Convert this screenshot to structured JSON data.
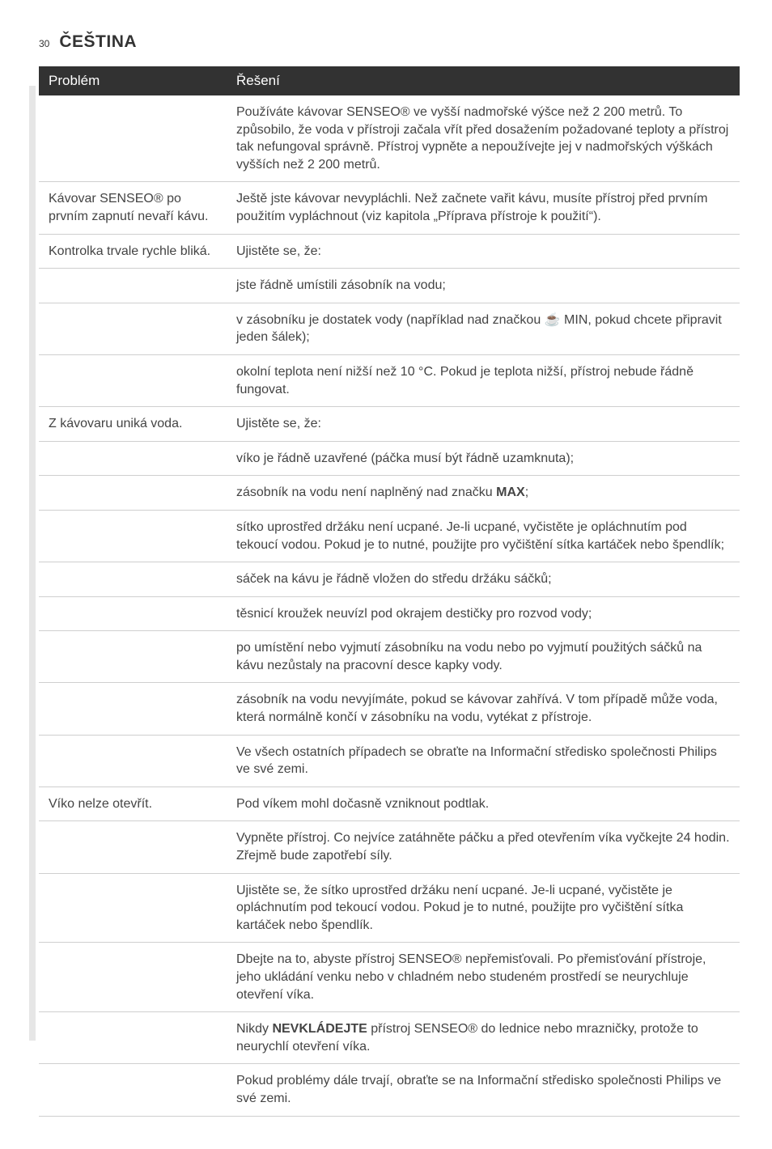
{
  "page_number": "30",
  "language_heading": "ČEŠTINA",
  "columns": {
    "problem": "Problém",
    "solution": "Řešení"
  },
  "rows": [
    {
      "problem": "",
      "solution": "Používáte kávovar SENSEO® ve vyšší nadmořské výšce než 2 200 metrů. To způsobilo, že voda v přístroji začala vřít před dosažením požadované teploty a přístroj tak nefungoval správně. Přístroj vypněte a nepoužívejte jej v nadmořských výškách vyšších než 2 200 metrů."
    },
    {
      "problem": "Kávovar SENSEO® po prvním zapnutí nevaří kávu.",
      "solution": "Ještě jste kávovar nevypláchli. Než začnete vařit kávu, musíte přístroj před prvním použitím vypláchnout (viz kapitola „Příprava přístroje k použití“)."
    },
    {
      "problem": "Kontrolka trvale rychle bliká.",
      "solution": "Ujistěte se, že:"
    },
    {
      "problem": "",
      "solution": "jste řádně umístili zásobník na vodu;"
    },
    {
      "problem": "",
      "solution": "v zásobníku je dostatek vody (například nad značkou ☕ MIN, pokud chcete připravit jeden šálek);"
    },
    {
      "problem": "",
      "solution": "okolní teplota není nižší než 10 °C. Pokud je teplota nižší, přístroj nebude řádně fungovat."
    },
    {
      "problem": "Z kávovaru uniká voda.",
      "solution": "Ujistěte se, že:"
    },
    {
      "problem": "",
      "solution": "víko je řádně uzavřené (páčka musí být řádně uzamknuta);"
    },
    {
      "problem": "",
      "solution_pre": "zásobník na vodu není naplněný nad značku ",
      "solution_bold": "MAX",
      "solution_post": ";"
    },
    {
      "problem": "",
      "solution": "sítko uprostřed držáku není ucpané. Je-li ucpané, vyčistěte je opláchnutím pod tekoucí vodou. Pokud je to nutné, použijte pro vyčištění sítka kartáček nebo špendlík;"
    },
    {
      "problem": "",
      "solution": "sáček na kávu je řádně vložen do středu držáku sáčků;"
    },
    {
      "problem": "",
      "solution": "těsnicí kroužek neuvízl pod okrajem destičky pro rozvod vody;"
    },
    {
      "problem": "",
      "solution": "po umístění nebo vyjmutí zásobníku na vodu nebo po vyjmutí použitých sáčků na kávu nezůstaly na pracovní desce kapky vody."
    },
    {
      "problem": "",
      "solution": "zásobník na vodu nevyjímáte, pokud se kávovar zahřívá. V tom případě může voda, která normálně končí v zásobníku na vodu, vytékat z přístroje."
    },
    {
      "problem": "",
      "solution": "Ve všech ostatních případech se obraťte na Informační středisko společnosti Philips ve své zemi."
    },
    {
      "problem": "Víko nelze otevřít.",
      "solution": "Pod víkem mohl dočasně vzniknout podtlak."
    },
    {
      "problem": "",
      "solution": "Vypněte přístroj. Co nejvíce zatáhněte páčku a před otevřením víka vyčkejte 24 hodin. Zřejmě bude zapotřebí síly."
    },
    {
      "problem": "",
      "solution": "Ujistěte se, že sítko uprostřed držáku není ucpané. Je-li ucpané, vyčistěte je opláchnutím pod tekoucí vodou. Pokud je to nutné, použijte pro vyčištění sítka kartáček nebo špendlík."
    },
    {
      "problem": "",
      "solution": "Dbejte na to, abyste přístroj SENSEO® nepřemisťovali. Po přemisťování přístroje, jeho ukládání venku nebo v chladném nebo studeném prostředí se neurychluje otevření víka."
    },
    {
      "problem": "",
      "solution_pre": "Nikdy ",
      "solution_bold": "NEVKLÁDEJTE",
      "solution_post": " přístroj SENSEO® do lednice nebo mrazničky, protože to neurychlí otevření víka."
    },
    {
      "problem": "",
      "solution": "Pokud problémy dále trvají, obraťte se na Informační středisko společnosti Philips ve své zemi."
    }
  ]
}
